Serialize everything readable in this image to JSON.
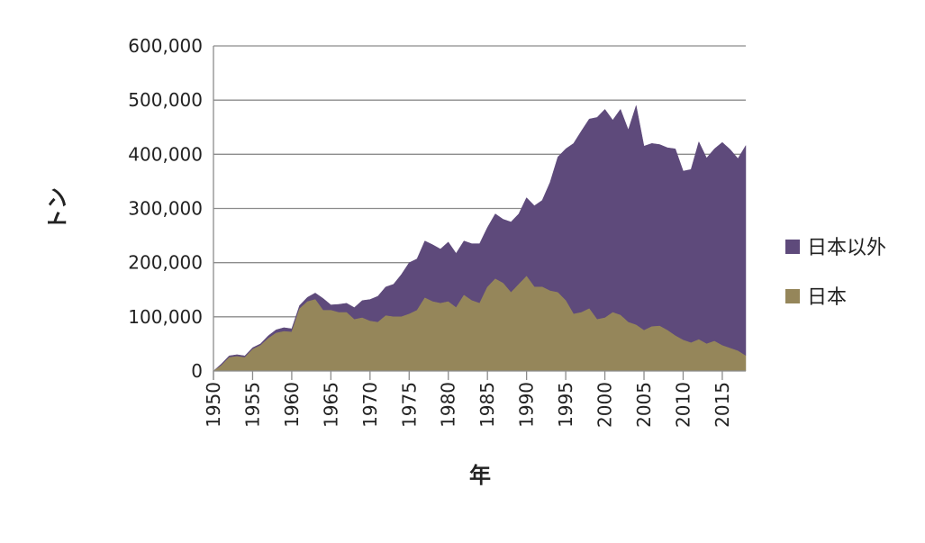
{
  "chart_data": {
    "type": "area",
    "stacked": true,
    "xlabel": "年",
    "ylabel": "トン",
    "ylim": [
      0,
      600000
    ],
    "xlim": [
      1950,
      2018
    ],
    "y_ticks": [
      0,
      100000,
      200000,
      300000,
      400000,
      500000,
      600000
    ],
    "y_tick_labels": [
      "0",
      "100,000",
      "200,000",
      "300,000",
      "400,000",
      "500,000",
      "600,000"
    ],
    "x_ticks": [
      1950,
      1955,
      1960,
      1965,
      1970,
      1975,
      1980,
      1985,
      1990,
      1995,
      2000,
      2005,
      2010,
      2015
    ],
    "x_tick_labels": [
      "1950",
      "1955",
      "1960",
      "1965",
      "1970",
      "1975",
      "1980",
      "1985",
      "1990",
      "1995",
      "2000",
      "2005",
      "2010",
      "2015"
    ],
    "grid": "horizontal",
    "legend_position": "right",
    "x": [
      1950,
      1951,
      1952,
      1953,
      1954,
      1955,
      1956,
      1957,
      1958,
      1959,
      1960,
      1961,
      1962,
      1963,
      1964,
      1965,
      1966,
      1967,
      1968,
      1969,
      1970,
      1971,
      1972,
      1973,
      1974,
      1975,
      1976,
      1977,
      1978,
      1979,
      1980,
      1981,
      1982,
      1983,
      1984,
      1985,
      1986,
      1987,
      1988,
      1989,
      1990,
      1991,
      1992,
      1993,
      1994,
      1995,
      1996,
      1997,
      1998,
      1999,
      2000,
      2001,
      2002,
      2003,
      2004,
      2005,
      2006,
      2007,
      2008,
      2009,
      2010,
      2011,
      2012,
      2013,
      2014,
      2015,
      2016,
      2017,
      2018
    ],
    "series": [
      {
        "name": "日本以外",
        "color": "#5e4a7b",
        "values": [
          0,
          3000,
          3000,
          3000,
          3000,
          3000,
          3000,
          5000,
          6000,
          7000,
          6000,
          6000,
          8000,
          12000,
          22000,
          10000,
          15000,
          17000,
          22000,
          32000,
          40000,
          48000,
          53000,
          60000,
          78000,
          95000,
          95000,
          105000,
          105000,
          100000,
          110000,
          100000,
          100000,
          105000,
          110000,
          110000,
          120000,
          118000,
          130000,
          130000,
          145000,
          150000,
          160000,
          200000,
          250000,
          280000,
          315000,
          335000,
          350000,
          373000,
          385000,
          355000,
          380000,
          355000,
          405000,
          340000,
          338000,
          335000,
          337000,
          345000,
          312000,
          320000,
          365000,
          343000,
          355000,
          375000,
          367000,
          355000,
          388000
        ]
      },
      {
        "name": "日本",
        "color": "#95865a",
        "values": [
          0,
          10000,
          25000,
          27000,
          25000,
          40000,
          47000,
          60000,
          70000,
          73000,
          72000,
          115000,
          128000,
          132000,
          112000,
          112000,
          108000,
          108000,
          95000,
          98000,
          92000,
          90000,
          102000,
          100000,
          100000,
          105000,
          112000,
          135000,
          128000,
          125000,
          128000,
          117000,
          140000,
          130000,
          125000,
          155000,
          170000,
          162000,
          145000,
          160000,
          175000,
          155000,
          155000,
          148000,
          145000,
          130000,
          105000,
          108000,
          115000,
          95000,
          98000,
          108000,
          103000,
          90000,
          85000,
          75000,
          82000,
          83000,
          75000,
          65000,
          57000,
          52000,
          58000,
          50000,
          55000,
          47000,
          42000,
          37000,
          28000
        ]
      }
    ]
  }
}
